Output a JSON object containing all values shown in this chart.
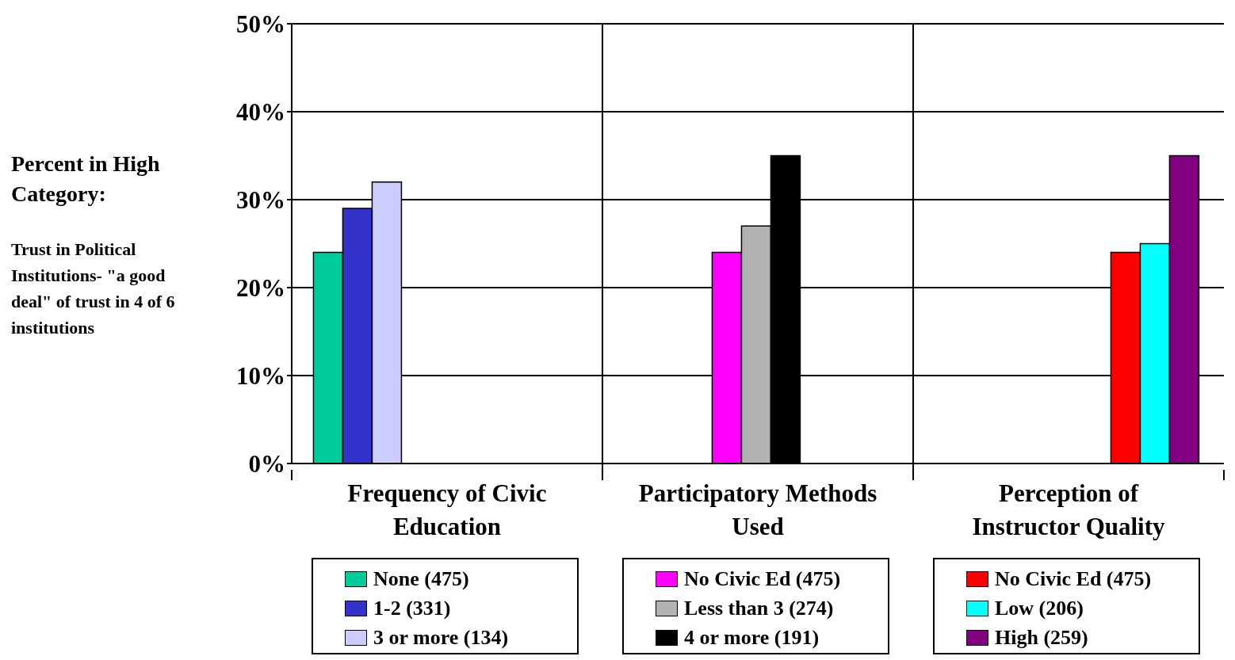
{
  "chart_data": {
    "type": "bar",
    "ylabel": "Percent in High Category:",
    "annotations": [
      "Trust in Political Institutions- \"a good deal\" of trust in 4 of 6 institutions"
    ],
    "categories": [
      "Frequency of Civic Education",
      "Participatory Methods Used",
      "Perception of Instructor Quality"
    ],
    "series": [
      {
        "name": "None (475)",
        "color": "#00cc99",
        "values": [
          24,
          null,
          null
        ]
      },
      {
        "name": "1-2 (331)",
        "color": "#3333cc",
        "values": [
          29,
          null,
          null
        ]
      },
      {
        "name": "3 or more (134)",
        "color": "#ccccff",
        "values": [
          32,
          null,
          null
        ]
      },
      {
        "name": "No Civic Ed (475)",
        "color": "#ff00ff",
        "values": [
          null,
          24,
          null
        ]
      },
      {
        "name": "Less than 3 (274)",
        "color": "#b2b2b2",
        "values": [
          null,
          27,
          null
        ]
      },
      {
        "name": "4 or more (191)",
        "color": "#000000",
        "values": [
          null,
          35,
          null
        ]
      },
      {
        "name": "No Civic Ed (475)",
        "color": "#ff0000",
        "values": [
          null,
          null,
          24
        ]
      },
      {
        "name": "Low (206)",
        "color": "#00ffff",
        "values": [
          null,
          null,
          25
        ]
      },
      {
        "name": "High (259)",
        "color": "#800080",
        "values": [
          null,
          null,
          35
        ]
      }
    ],
    "ylim": [
      0,
      50
    ],
    "yticks": [
      {
        "value": 0,
        "label": "0%"
      },
      {
        "value": 10,
        "label": "10%"
      },
      {
        "value": 20,
        "label": "20%"
      },
      {
        "value": 30,
        "label": "30%"
      },
      {
        "value": 40,
        "label": "40%"
      },
      {
        "value": 50,
        "label": "50%"
      }
    ],
    "grid": true,
    "legend": "bottom"
  }
}
